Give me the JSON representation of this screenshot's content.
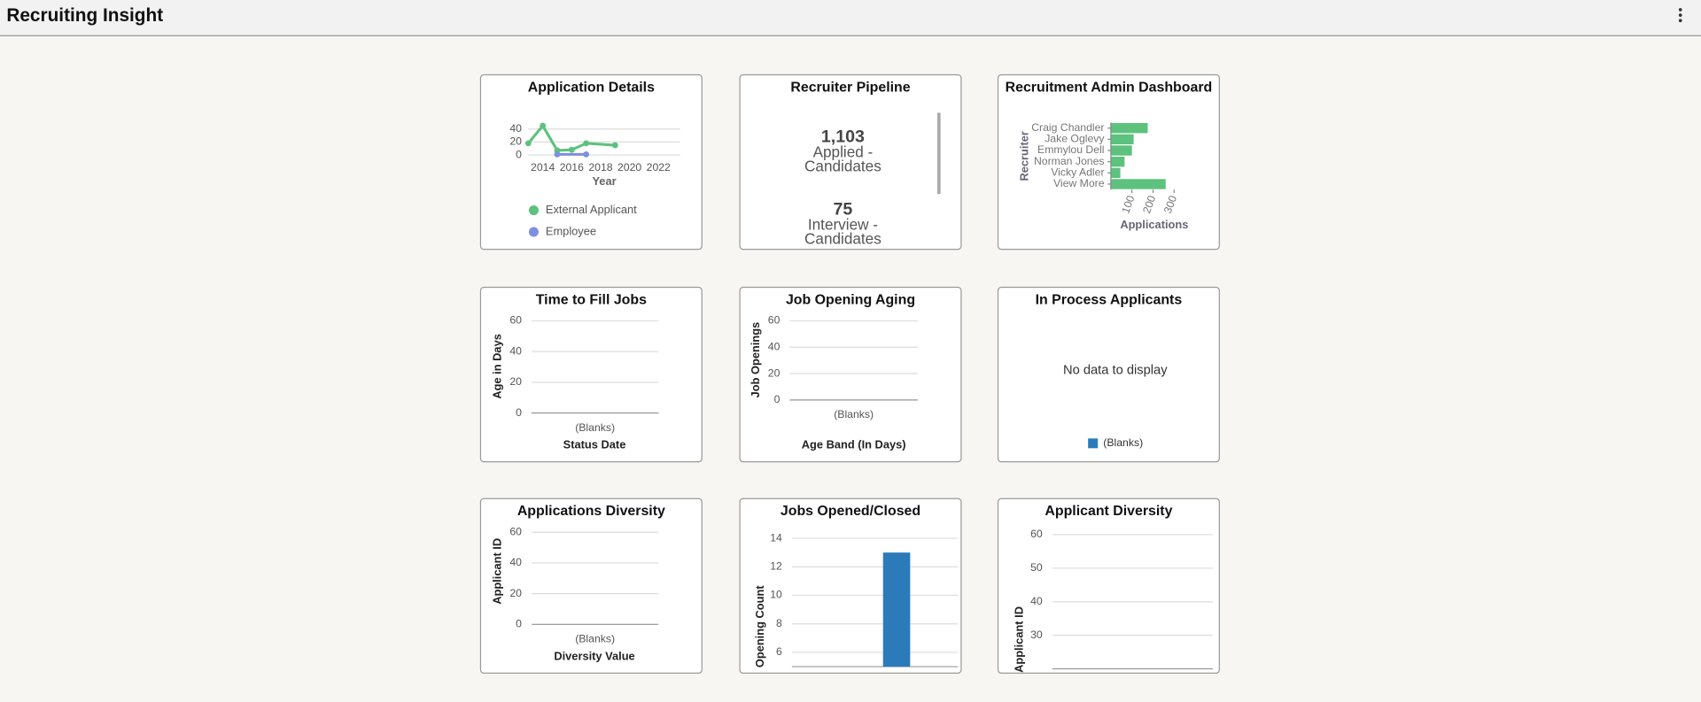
{
  "header": {
    "title": "Recruiting Insight"
  },
  "chart_data": [
    {
      "type": "line",
      "title": "Application Details",
      "x_label": "Year",
      "xlim": [
        2013,
        2023.5
      ],
      "xticks": [
        2014,
        2016,
        2018,
        2020,
        2022
      ],
      "ylim": [
        0,
        50
      ],
      "yticks": [
        0,
        20,
        40
      ],
      "grid": true,
      "legend": "bottom",
      "series": [
        {
          "name": "External Applicant",
          "color": "#5cc27d",
          "x": [
            2013,
            2014,
            2015,
            2016,
            2017,
            2019
          ],
          "values": [
            18,
            45,
            7,
            8,
            18,
            15
          ]
        },
        {
          "name": "Employee",
          "color": "#7d8fde",
          "x": [
            2015,
            2017
          ],
          "values": [
            1,
            1
          ]
        }
      ]
    },
    {
      "type": "kpi",
      "title": "Recruiter Pipeline",
      "items": [
        {
          "value": "1,103",
          "label": "Applied - Candidates"
        },
        {
          "value": "75",
          "label": "Interview - Candidates"
        }
      ]
    },
    {
      "type": "bar",
      "orientation": "horizontal",
      "title": "Recruitment Admin Dashboard",
      "y_label": "Recruiter",
      "x_label": "Applications",
      "categories": [
        "Craig Chandler",
        "Jake Oglevy",
        "Emmylou Dell",
        "Norman Jones",
        "Vicky Adler",
        "View More"
      ],
      "values": [
        175,
        108,
        100,
        65,
        45,
        260
      ],
      "color": "#5cc27d",
      "xlim": [
        0,
        350
      ],
      "xticks": [
        100,
        200,
        300
      ]
    },
    {
      "type": "bar",
      "title": "Time to Fill Jobs",
      "y_label": "Age in Days",
      "x_label": "Status Date",
      "categories": [
        "(Blanks)"
      ],
      "values": [
        0
      ],
      "color": "#2b7bba",
      "ylim": [
        0,
        60
      ],
      "yticks": [
        0,
        20,
        40,
        60
      ],
      "grid": true
    },
    {
      "type": "bar",
      "title": "Job Opening Aging",
      "y_label": "Job Openings",
      "x_label": "Age Band (In Days)",
      "categories": [
        "(Blanks)"
      ],
      "values": [
        0
      ],
      "color": "#2b7bba",
      "ylim": [
        0,
        60
      ],
      "yticks": [
        0,
        20,
        40,
        60
      ],
      "grid": true
    },
    {
      "type": "pie",
      "title": "In Process Applicants",
      "message": "No data to display",
      "series": [
        {
          "name": "(Blanks)",
          "color": "#2b7bba"
        }
      ]
    },
    {
      "type": "bar",
      "title": "Applications Diversity",
      "y_label": "Applicant ID",
      "x_label": "Diversity Value",
      "categories": [
        "(Blanks)"
      ],
      "values": [
        0
      ],
      "color": "#2b7bba",
      "ylim": [
        0,
        60
      ],
      "yticks": [
        0,
        20,
        40,
        60
      ],
      "grid": true
    },
    {
      "type": "bar",
      "title": "Jobs Opened/Closed",
      "y_label": "Opening Count",
      "categories": [
        null
      ],
      "values": [
        13
      ],
      "color": "#2b7bba",
      "ylim": [
        5,
        14.5
      ],
      "yticks": [
        6,
        8,
        10,
        12,
        14
      ],
      "grid": true
    },
    {
      "type": "bar",
      "title": "Applicant Diversity",
      "y_label": "Applicant ID",
      "categories": [],
      "values": [],
      "color": "#2b7bba",
      "ylim": [
        20,
        62
      ],
      "yticks": [
        30,
        40,
        50,
        60
      ],
      "grid": true
    }
  ]
}
